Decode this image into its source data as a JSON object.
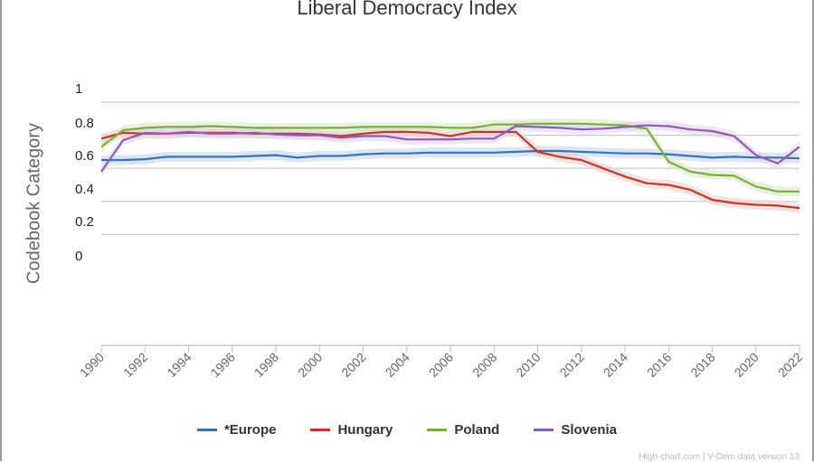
{
  "chart_data": {
    "type": "line",
    "title": "Liberal Democracy Index",
    "ylabel": "Codebook Category",
    "xlabel": "",
    "ylim": [
      0,
      1
    ],
    "y_ticks": [
      "1",
      "0.8",
      "0.6",
      "0.4",
      "0.2",
      "0"
    ],
    "x": [
      1990,
      1991,
      1992,
      1993,
      1994,
      1995,
      1996,
      1997,
      1998,
      1999,
      2000,
      2001,
      2002,
      2003,
      2004,
      2005,
      2006,
      2007,
      2008,
      2009,
      2010,
      2011,
      2012,
      2013,
      2014,
      2015,
      2016,
      2017,
      2018,
      2019,
      2020,
      2021,
      2022
    ],
    "x_ticks": [
      "1990",
      "1992",
      "1994",
      "1996",
      "1998",
      "2000",
      "2002",
      "2004",
      "2006",
      "2008",
      "2010",
      "2012",
      "2014",
      "2016",
      "2018",
      "2020",
      "2022"
    ],
    "grid": true,
    "legend_position": "bottom",
    "series": [
      {
        "name": "*Europe",
        "color": "#3a72b0",
        "band_color": "#c4d6ec",
        "values": [
          0.65,
          0.65,
          0.655,
          0.67,
          0.67,
          0.67,
          0.67,
          0.675,
          0.68,
          0.665,
          0.675,
          0.675,
          0.685,
          0.69,
          0.69,
          0.695,
          0.695,
          0.695,
          0.695,
          0.7,
          0.705,
          0.705,
          0.7,
          0.695,
          0.69,
          0.69,
          0.685,
          0.675,
          0.665,
          0.67,
          0.665,
          0.665,
          0.66
        ]
      },
      {
        "name": "Hungary",
        "color": "#c0392b",
        "band_color": "#f0cfcf",
        "values": [
          0.78,
          0.815,
          0.81,
          0.81,
          0.815,
          0.815,
          0.815,
          0.81,
          0.81,
          0.81,
          0.805,
          0.795,
          0.81,
          0.82,
          0.82,
          0.815,
          0.795,
          0.82,
          0.82,
          0.82,
          0.7,
          0.67,
          0.65,
          0.6,
          0.55,
          0.51,
          0.5,
          0.47,
          0.41,
          0.39,
          0.38,
          0.375,
          0.36
        ]
      },
      {
        "name": "Poland",
        "color": "#7aae3c",
        "band_color": "#dbe9c8",
        "values": [
          0.73,
          0.83,
          0.845,
          0.85,
          0.85,
          0.855,
          0.85,
          0.845,
          0.845,
          0.845,
          0.845,
          0.845,
          0.85,
          0.85,
          0.85,
          0.85,
          0.845,
          0.845,
          0.865,
          0.865,
          0.87,
          0.87,
          0.87,
          0.865,
          0.86,
          0.84,
          0.64,
          0.58,
          0.56,
          0.555,
          0.49,
          0.46,
          0.46
        ]
      },
      {
        "name": "Slovenia",
        "color": "#8e5fb0",
        "band_color": "#e3d6ee",
        "values": [
          0.58,
          0.77,
          0.815,
          0.81,
          0.82,
          0.81,
          0.81,
          0.815,
          0.805,
          0.8,
          0.8,
          0.785,
          0.795,
          0.795,
          0.775,
          0.775,
          0.775,
          0.78,
          0.78,
          0.855,
          0.85,
          0.845,
          0.835,
          0.84,
          0.85,
          0.86,
          0.855,
          0.835,
          0.825,
          0.795,
          0.68,
          0.63,
          0.73
        ]
      }
    ]
  },
  "credits": "High-chart.com | V-Dem data version 13"
}
